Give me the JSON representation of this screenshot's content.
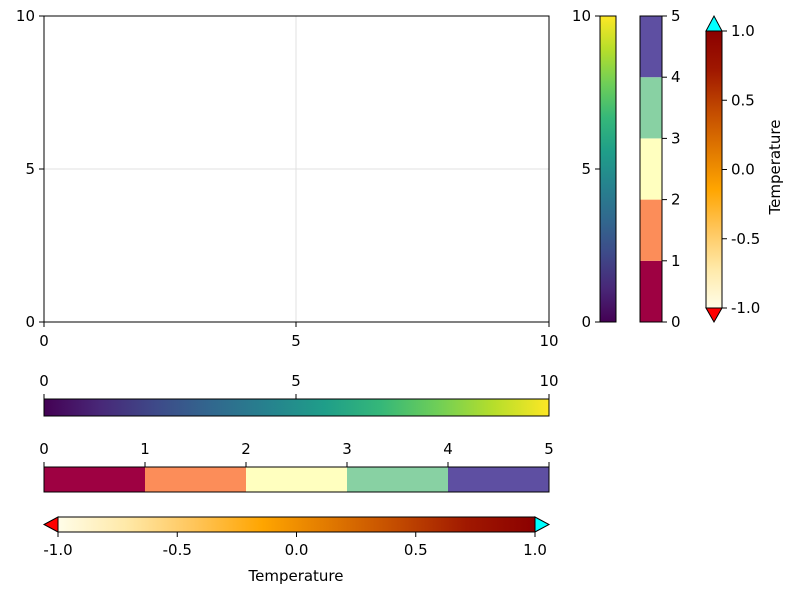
{
  "chart_data": [
    {
      "type": "scatter",
      "title": "",
      "xlabel": "",
      "ylabel": "",
      "xlim": [
        0,
        10
      ],
      "ylim": [
        0,
        10
      ],
      "xticks": [
        "0",
        "5",
        "10"
      ],
      "yticks": [
        "0",
        "5",
        "10"
      ],
      "grid": true,
      "series": []
    },
    {
      "type": "colorbar",
      "orientation": "vertical",
      "colormap": "viridis",
      "limits": [
        0,
        10
      ],
      "ticks": [
        "0",
        "5",
        "10"
      ],
      "label": ""
    },
    {
      "type": "colorbar",
      "orientation": "vertical",
      "categorical": true,
      "limits": [
        0,
        5
      ],
      "ticks": [
        "0",
        "1",
        "2",
        "3",
        "4",
        "5"
      ],
      "colors": [
        "#9e0142",
        "#fc8d59",
        "#ffffbf",
        "#88d1a3",
        "#5e4fa2"
      ],
      "label": ""
    },
    {
      "type": "colorbar",
      "orientation": "vertical",
      "colormap": "heat",
      "limits": [
        -1.0,
        1.0
      ],
      "ticks": [
        "-1.0",
        "-0.5",
        "0.0",
        "0.5",
        "1.0"
      ],
      "low_clip_color": "#ff0000",
      "high_clip_color": "#00ffff",
      "label": "Temperature"
    },
    {
      "type": "colorbar",
      "orientation": "horizontal",
      "colormap": "viridis",
      "limits": [
        0,
        10
      ],
      "ticks": [
        "0",
        "5",
        "10"
      ],
      "label": ""
    },
    {
      "type": "colorbar",
      "orientation": "horizontal",
      "categorical": true,
      "limits": [
        0,
        5
      ],
      "ticks": [
        "0",
        "1",
        "2",
        "3",
        "4",
        "5"
      ],
      "colors": [
        "#9e0142",
        "#fc8d59",
        "#ffffbf",
        "#88d1a3",
        "#5e4fa2"
      ],
      "label": ""
    },
    {
      "type": "colorbar",
      "orientation": "horizontal",
      "colormap": "heat",
      "limits": [
        -1.0,
        1.0
      ],
      "ticks": [
        "-1.0",
        "-0.5",
        "0.0",
        "0.5",
        "1.0"
      ],
      "low_clip_color": "#ff0000",
      "high_clip_color": "#00ffff",
      "label": "Temperature"
    }
  ],
  "colormaps": {
    "viridis": [
      "#440154",
      "#482878",
      "#3e4a89",
      "#31688e",
      "#26828e",
      "#1f9e89",
      "#35b779",
      "#6ece58",
      "#b5de2b",
      "#fde725"
    ],
    "heat": [
      "#fffde8",
      "#ffe9a8",
      "#ffc55a",
      "#ffa500",
      "#e07800",
      "#c24a00",
      "#a01800",
      "#8b0000"
    ]
  }
}
